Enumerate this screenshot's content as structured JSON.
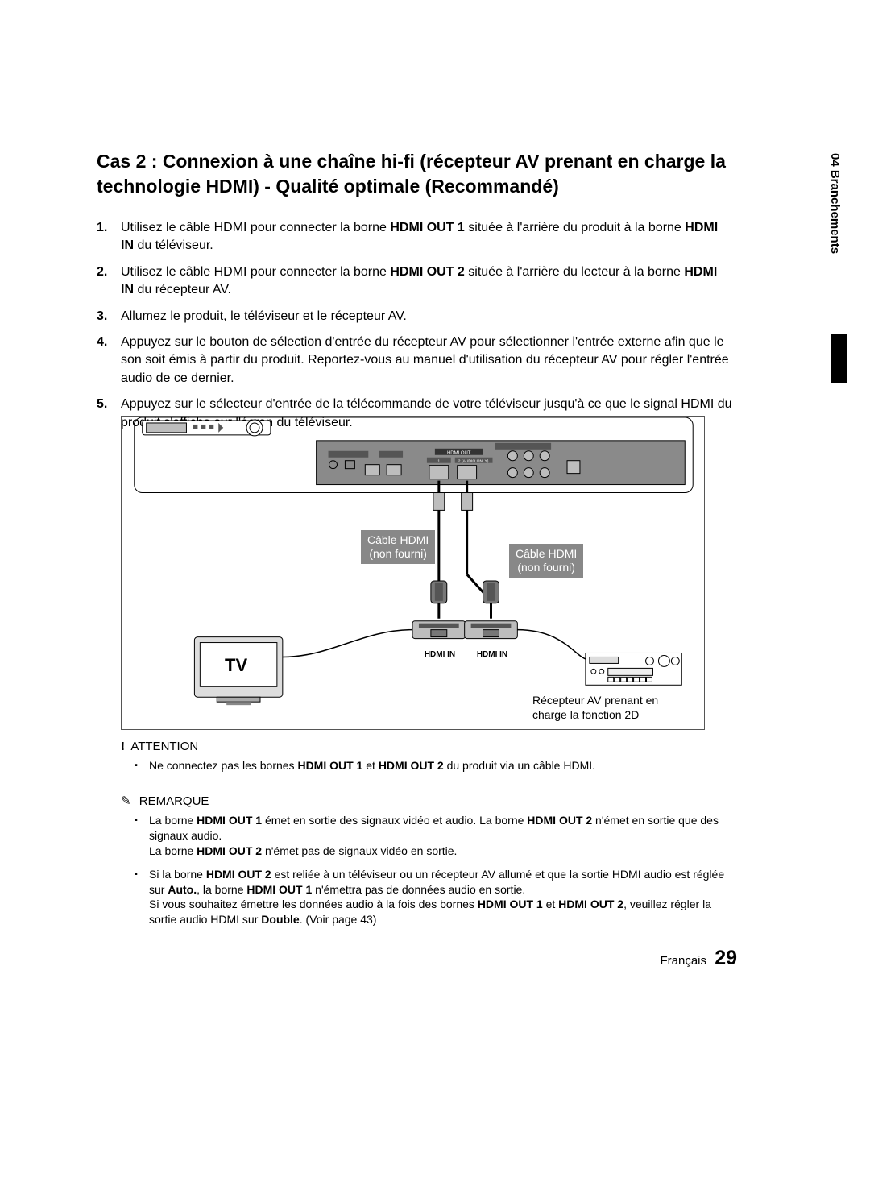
{
  "side_tab": "04   Branchements",
  "title": "Cas 2 : Connexion à une chaîne hi-fi (récepteur AV prenant en charge la technologie HDMI) - Qualité optimale (Recommandé)",
  "steps": [
    {
      "num": "1.",
      "html": "Utilisez le câble HDMI pour connecter la borne <b>HDMI OUT 1</b> située à l'arrière du produit à la borne <b>HDMI IN</b> du téléviseur."
    },
    {
      "num": "2.",
      "html": "Utilisez le câble HDMI pour connecter la borne <b>HDMI OUT 2</b> située à l'arrière du lecteur à la borne <b>HDMI IN</b> du récepteur AV."
    },
    {
      "num": "3.",
      "html": "Allumez le produit, le téléviseur et le récepteur AV."
    },
    {
      "num": "4.",
      "html": "Appuyez sur le bouton de sélection d'entrée du récepteur AV pour sélectionner l'entrée externe afin que le son soit émis à partir du produit. Reportez-vous au manuel d'utilisation du récepteur AV pour régler l'entrée audio de ce dernier."
    },
    {
      "num": "5.",
      "html": "Appuyez sur le sélecteur d'entrée de la télécommande de votre téléviseur jusqu'à ce que le signal HDMI du produit s'affiche sur l'écran du téléviseur."
    }
  ],
  "diagram": {
    "cable1": "Câble HDMI\n(non fourni)",
    "cable2": "Câble HDMI\n(non fourni)",
    "hdmi_in": "HDMI IN",
    "tv": "TV",
    "receiver_caption": "Récepteur AV prenant en\ncharge la fonction 2D",
    "colors": {
      "line": "#000000",
      "fill_grey": "#bdbdbd",
      "fill_dark": "#555555",
      "panel": "#8a8a8a",
      "white": "#ffffff"
    }
  },
  "attention": {
    "heading": "ATTENTION",
    "items": [
      "Ne connectez pas les bornes <b>HDMI OUT 1</b> et <b>HDMI OUT 2</b> du produit via un câble HDMI."
    ]
  },
  "remark": {
    "heading": "REMARQUE",
    "items": [
      "La borne <b>HDMI OUT 1</b> émet en sortie des signaux vidéo et audio. La borne <b>HDMI OUT 2</b> n'émet en sortie que des signaux audio.<br>La borne <b>HDMI OUT 2</b> n'émet pas de signaux vidéo en sortie.",
      "Si la borne <b>HDMI OUT 2</b> est reliée à un téléviseur ou un récepteur AV allumé et que la sortie HDMI audio est réglée sur <b>Auto.</b>, la borne <b>HDMI OUT 1</b> n'émettra pas de données audio en sortie.<br>Si vous souhaitez émettre les données audio à la fois des bornes <b>HDMI OUT 1</b> et <b>HDMI OUT 2</b>, veuillez régler la sortie audio HDMI sur <b>Double</b>. (Voir page 43)"
    ]
  },
  "footer": {
    "lang": "Français",
    "page": "29"
  }
}
